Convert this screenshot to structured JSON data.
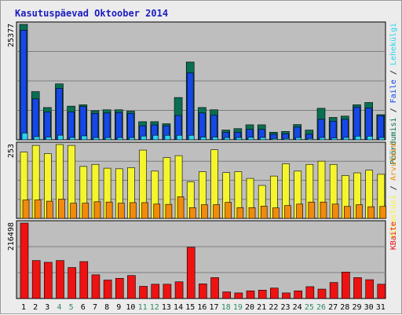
{
  "title": "Kasutuspäevad Oktoober 2014",
  "colors": {
    "panel_bg": "#bebebe",
    "hits": "#0a6e52",
    "files": "#1747e6",
    "pages": "#2ad4f0",
    "visits": "#f5f52e",
    "sites": "#f28a0c",
    "kbytes": "#ee1212",
    "weekday_label": "#000000",
    "weekend_label": "#2e8a62"
  },
  "chart_data": [
    {
      "type": "bar",
      "panel": "top",
      "ytick": "25377",
      "ylim": [
        0,
        25377
      ],
      "categories": [
        "1",
        "2",
        "3",
        "4",
        "5",
        "6",
        "7",
        "8",
        "9",
        "10",
        "11",
        "12",
        "13",
        "14",
        "15",
        "16",
        "17",
        "18",
        "19",
        "20",
        "21",
        "22",
        "23",
        "24",
        "25",
        "26",
        "27",
        "28",
        "29",
        "30",
        "31"
      ],
      "weekend": [
        "4",
        "5",
        "11",
        "12",
        "18",
        "19",
        "25",
        "26"
      ],
      "legend": [
        "Pöördumisi",
        "Faile",
        "Lehekülgi"
      ],
      "series": [
        {
          "name": "Pöördumisi",
          "color_key": "hits",
          "values": [
            25377,
            10600,
            7100,
            12300,
            7400,
            7700,
            6400,
            6600,
            6600,
            6300,
            3990,
            3990,
            3540,
            9300,
            17100,
            7100,
            6600,
            2150,
            2460,
            3300,
            3300,
            1680,
            1840,
            3360,
            2150,
            6930,
            4920,
            5210,
            7700,
            8200,
            5530
          ]
        },
        {
          "name": "Faile",
          "color_key": "files",
          "values": [
            24100,
            9000,
            6100,
            11300,
            6100,
            7300,
            5800,
            5900,
            6000,
            5800,
            3080,
            3280,
            3080,
            5350,
            14700,
            5900,
            5400,
            1640,
            1640,
            2300,
            2290,
            1220,
            1330,
            2800,
            1230,
            4500,
            4100,
            4500,
            7200,
            7000,
            5300
          ]
        },
        {
          "name": "Lehekülgi",
          "color_key": "pages",
          "values": [
            1500,
            700,
            610,
            1010,
            520,
            870,
            500,
            500,
            500,
            500,
            830,
            1000,
            990,
            1000,
            1000,
            600,
            600,
            500,
            500,
            550,
            520,
            300,
            300,
            500,
            300,
            500,
            400,
            520,
            800,
            800,
            500
          ]
        }
      ]
    },
    {
      "type": "bar",
      "panel": "middle",
      "ytick": "253",
      "ylim": [
        0,
        253
      ],
      "categories": [
        "1",
        "2",
        "3",
        "4",
        "5",
        "6",
        "7",
        "8",
        "9",
        "10",
        "11",
        "12",
        "13",
        "14",
        "15",
        "16",
        "17",
        "18",
        "19",
        "20",
        "21",
        "22",
        "23",
        "24",
        "25",
        "26",
        "27",
        "28",
        "29",
        "30",
        "31"
      ],
      "legend": [
        "Külastusi",
        "Arvuteid"
      ],
      "series": [
        {
          "name": "Külastusi",
          "color_key": "visits",
          "values": [
            227,
            250,
            222,
            253,
            250,
            178,
            185,
            172,
            170,
            174,
            234,
            162,
            208,
            215,
            125,
            160,
            235,
            157,
            160,
            137,
            113,
            145,
            187,
            162,
            185,
            196,
            185,
            147,
            156,
            165,
            151
          ]
        },
        {
          "name": "Arvuteid",
          "color_key": "sites",
          "values": [
            63,
            63,
            59,
            66,
            52,
            52,
            57,
            56,
            52,
            54,
            54,
            49,
            48,
            74,
            37,
            47,
            47,
            55,
            37,
            37,
            42,
            36,
            44,
            49,
            56,
            56,
            49,
            41,
            47,
            40,
            41
          ]
        }
      ]
    },
    {
      "type": "bar",
      "panel": "bottom",
      "ytick": "216498",
      "ylim": [
        0,
        216498
      ],
      "categories": [
        "1",
        "2",
        "3",
        "4",
        "5",
        "6",
        "7",
        "8",
        "9",
        "10",
        "11",
        "12",
        "13",
        "14",
        "15",
        "16",
        "17",
        "18",
        "19",
        "20",
        "21",
        "22",
        "23",
        "24",
        "25",
        "26",
        "27",
        "28",
        "29",
        "30",
        "31"
      ],
      "legend": [
        "KBaite"
      ],
      "series": [
        {
          "name": "KBaite",
          "color_key": "kbytes",
          "values": [
            216498,
            109000,
            104000,
            109000,
            89000,
            106000,
            68000,
            53000,
            58000,
            66000,
            35000,
            41000,
            41000,
            48000,
            147000,
            42000,
            60000,
            19000,
            16000,
            22000,
            24000,
            30000,
            16000,
            22000,
            34000,
            27000,
            46000,
            76000,
            60000,
            54000,
            41000
          ]
        }
      ]
    }
  ]
}
